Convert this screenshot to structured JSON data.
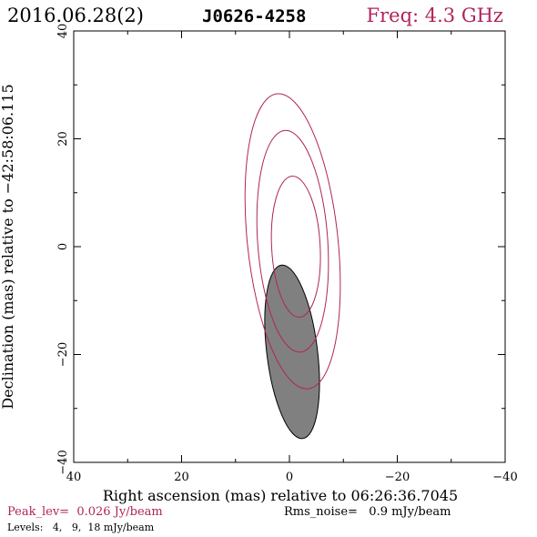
{
  "header": {
    "date": "2016.06.28(2)",
    "source": "J0626-4258",
    "freq": "Freq: 4.3 GHz"
  },
  "footer": {
    "peak": "Peak_lev=  0.026 Jy/beam",
    "rms": "Rms_noise=   0.9 mJy/beam",
    "levels": "Levels:   4,   9,  18 mJy/beam"
  },
  "colors": {
    "contour": "#b0245c",
    "beam_fill": "#808080",
    "header_freq": "#b0245c",
    "peak_text": "#b0245c"
  },
  "chart_data": {
    "type": "contour",
    "xlabel": "Right ascension (mas) relative to 06:26:36.7045",
    "ylabel": "Declination (mas) relative to −42:58:06.115",
    "xlim": [
      40,
      -40
    ],
    "ylim": [
      -40,
      40
    ],
    "xticks": [
      40,
      20,
      0,
      -20,
      -40
    ],
    "yticks": [
      -40,
      -20,
      0,
      20,
      40
    ],
    "xtick_labels": [
      "40",
      "20",
      "0",
      "−20",
      "−40"
    ],
    "ytick_labels": [
      "−40",
      "−20",
      "0",
      "20",
      "40"
    ],
    "minor_x": [
      30,
      10,
      -10,
      -30
    ],
    "minor_y": [
      -30,
      -10,
      10,
      30
    ],
    "contours": [
      {
        "level_mJy": 18,
        "center": [
          -1.2,
          0.0
        ],
        "a": 13.1,
        "b": 4.5,
        "angle_deg": -3,
        "points": [
          [
            0.5,
            13.1
          ],
          [
            -4.1,
            0.7
          ],
          [
            -1.2,
            -11.5
          ],
          [
            3.4,
            -0.2
          ],
          [
            0.5,
            13.1
          ]
        ]
      },
      {
        "level_mJy": 9,
        "center": [
          -0.6,
          1.0
        ],
        "a": 20.6,
        "b": 6.5,
        "angle_deg": -4,
        "points": [
          [
            1.2,
            21.6
          ],
          [
            -6.1,
            1.3
          ],
          [
            -2.3,
            -19.1
          ],
          [
            4.9,
            -0.1
          ],
          [
            1.2,
            21.6
          ]
        ]
      },
      {
        "level_mJy": 4,
        "center": [
          -0.6,
          1.0
        ],
        "a": 27.5,
        "b": 8.4,
        "angle_deg": -6,
        "points": [
          [
            2.5,
            28.6
          ],
          [
            -7.8,
            1.7
          ],
          [
            -3.5,
            -24.9
          ],
          [
            6.6,
            -0.1
          ],
          [
            2.5,
            28.6
          ]
        ]
      }
    ],
    "beam": {
      "center": [
        -0.5,
        -19.5
      ],
      "major": 32.4,
      "minor": 9.4,
      "pa_deg": -7
    }
  }
}
